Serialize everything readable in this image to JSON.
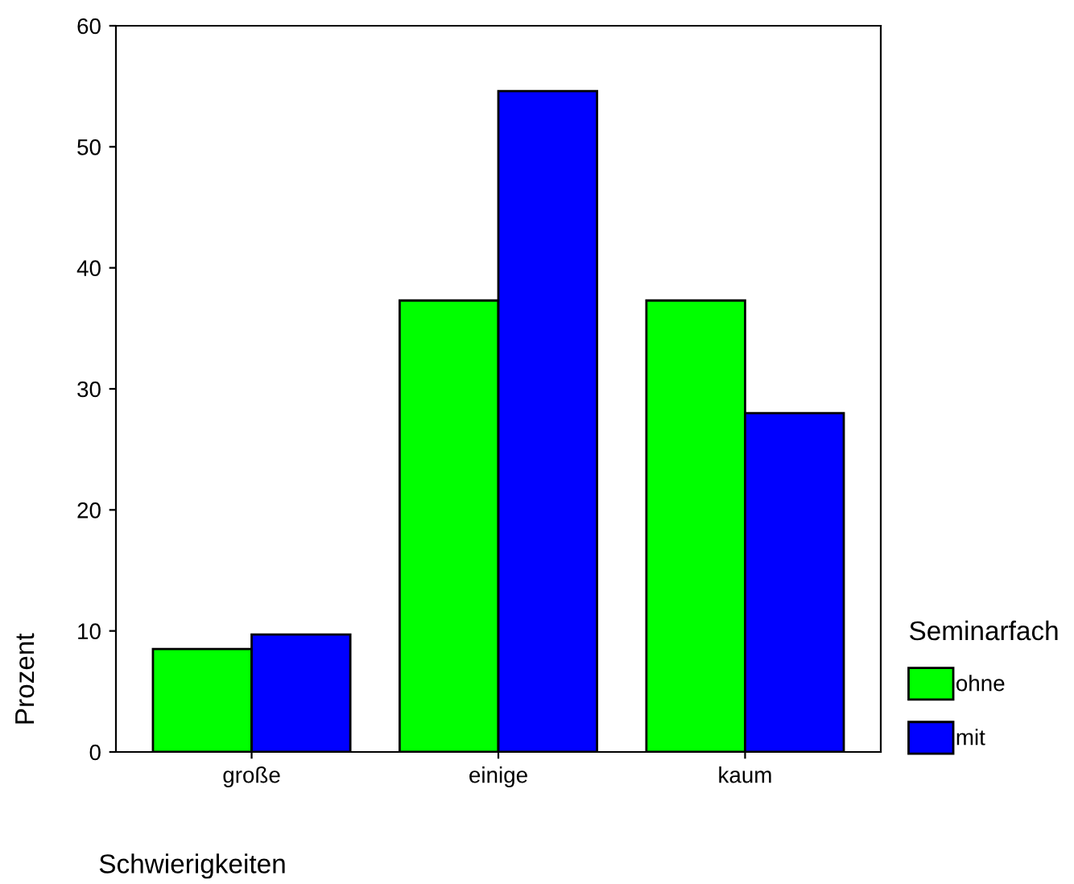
{
  "chart_data": {
    "type": "bar",
    "xlabel": "Schwierigkeiten",
    "ylabel": "Prozent",
    "legend_title": "Seminarfach",
    "categories": [
      "große",
      "einige",
      "kaum"
    ],
    "series": [
      {
        "name": "ohne",
        "color": "#00ff00",
        "values": [
          8.5,
          37.3,
          37.3
        ]
      },
      {
        "name": "mit",
        "color": "#0000ff",
        "values": [
          9.7,
          54.6,
          28.0
        ]
      }
    ],
    "ylim": [
      0,
      60
    ],
    "yticks": [
      0,
      10,
      20,
      30,
      40,
      50,
      60
    ],
    "grid": false,
    "legend": "right"
  }
}
